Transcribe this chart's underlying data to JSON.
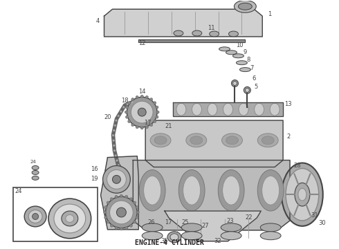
{
  "title": "ENGINE-4 CYLINDER",
  "title_fontsize": 7,
  "bg_color": "#ffffff",
  "line_color": "#444444",
  "fig_width": 4.9,
  "fig_height": 3.6,
  "dpi": 100
}
